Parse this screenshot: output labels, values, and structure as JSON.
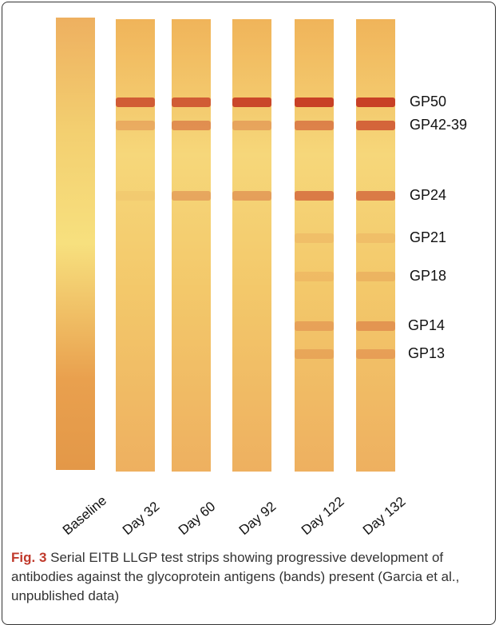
{
  "figure": {
    "strips": [
      "Baseline",
      "Day 32",
      "Day 60",
      "Day 92",
      "Day 122",
      "Day 132"
    ],
    "bands": [
      "GP50",
      "GP42-39",
      "GP24",
      "GP21",
      "GP18",
      "GP14",
      "GP13"
    ],
    "caption": {
      "label": "Fig. 3",
      "text": "Serial EITB LLGP test strips showing progressive development of antibodies against the glycoprotein antigens (bands) present (Garcia et al., unpublished data)"
    }
  }
}
